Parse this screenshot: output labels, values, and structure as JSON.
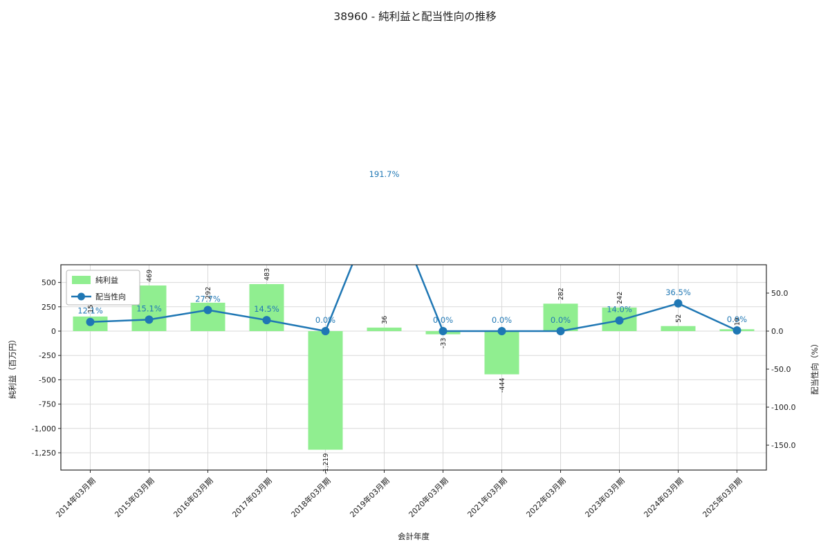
{
  "chart_data": {
    "type": "bar+line",
    "title": "38960 - 純利益と配当性向の推移",
    "xlabel": "会計年度",
    "ylabel_left": "純利益（百万円）",
    "ylabel_right": "配当性向（%）",
    "categories": [
      "2014年03月期",
      "2015年03月期",
      "2016年03月期",
      "2017年03月期",
      "2018年03月期",
      "2019年03月期",
      "2020年03月期",
      "2021年03月期",
      "2022年03月期",
      "2023年03月期",
      "2024年03月期",
      "2025年03月期"
    ],
    "series": [
      {
        "name": "純利益",
        "chart": "bar",
        "color": "#90ee90",
        "values": [
          150,
          469,
          292,
          483,
          -1219,
          36,
          -33,
          -444,
          282,
          242,
          52,
          19
        ],
        "labels": [
          "150",
          "469",
          "292",
          "483",
          "-1,219",
          "36",
          "-33",
          "-444",
          "282",
          "242",
          "52",
          "19"
        ]
      },
      {
        "name": "配当性向",
        "chart": "line",
        "marker": "circle",
        "color": "#1f77b4",
        "values": [
          12.1,
          15.1,
          27.7,
          14.5,
          0.0,
          191.7,
          0.0,
          0.0,
          0.0,
          14.0,
          36.5,
          0.9
        ],
        "labels": [
          "12.1%",
          "15.1%",
          "27.7%",
          "14.5%",
          "0.0%",
          "191.7%",
          "0.0%",
          "0.0%",
          "0.0%",
          "14.0%",
          "36.5%",
          "0.9%"
        ]
      }
    ],
    "left_axis": {
      "tick_values": [
        500,
        250,
        0,
        -250,
        -500,
        -750,
        -1000,
        -1250
      ],
      "tick_labels": [
        "500",
        "250",
        "0",
        "-250",
        "-500",
        "-750",
        "-1,000",
        "-1,250"
      ]
    },
    "right_axis": {
      "tick_values": [
        50,
        0,
        -50,
        -100,
        -150
      ],
      "tick_labels": [
        "50.0",
        "0.0",
        "-50.0",
        "-100.0",
        "-150.0"
      ]
    },
    "legend": {
      "position": "upper left",
      "items": [
        "純利益",
        "配当性向"
      ]
    },
    "grid": true,
    "colors": {
      "bar": "#90ee90",
      "line": "#1f77b4",
      "grid": "#d9d9d9",
      "frame": "#262626",
      "text": "#1a1a1a"
    }
  }
}
